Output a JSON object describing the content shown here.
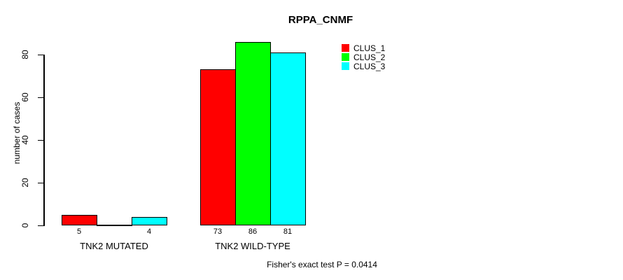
{
  "chart_data": {
    "type": "bar",
    "title": "RPPA_CNMF",
    "xlabel": "",
    "ylabel": "number of cases",
    "categories": [
      "TNK2 MUTATED",
      "TNK2 WILD-TYPE"
    ],
    "series": [
      {
        "name": "CLUS_1",
        "color": "#ff0000",
        "values": [
          5,
          73
        ]
      },
      {
        "name": "CLUS_2",
        "color": "#00ff00",
        "values": [
          0,
          86
        ]
      },
      {
        "name": "CLUS_3",
        "color": "#00ffff",
        "values": [
          4,
          81
        ]
      }
    ],
    "yticks": [
      0,
      20,
      40,
      60,
      80
    ],
    "ylim": [
      0,
      86
    ],
    "grid": false,
    "legend_position": "top-right",
    "hide_zero_value_labels": true,
    "footnote": "Fisher's exact test P = 0.0414"
  },
  "colors": {
    "background": "#ffffff",
    "axis": "#000000",
    "text": "#000000"
  }
}
